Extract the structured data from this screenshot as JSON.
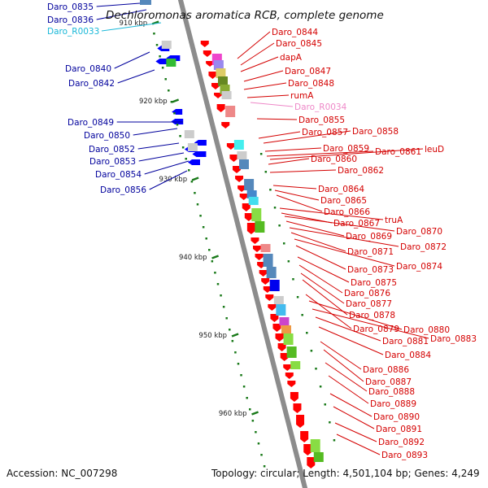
{
  "title": "Dechloromonas aromatica RCB, complete genome",
  "footer": {
    "accession": "Accession: NC_007298",
    "summary": "Topology: circular; Length: 4,501,104 bp; Genes: 4,249"
  },
  "colors": {
    "forward_label": "#d40000",
    "reverse_label": "#00009c",
    "rna_reverse_label": "#19b8d8",
    "rna_forward_label": "#ee88c8",
    "forward_gene": "#ff0000",
    "reverse_gene": "#0000ff",
    "backbone": "#8c8c8c",
    "tick": "#1a7a1a"
  },
  "ticks": [
    {
      "label": "910 kbp"
    },
    {
      "label": "920 kbp"
    },
    {
      "label": "930 kbp"
    },
    {
      "label": "940 kbp"
    },
    {
      "label": "950 kbp"
    },
    {
      "label": "960 kbp"
    }
  ],
  "left_labels": [
    {
      "text": "Daro_0835"
    },
    {
      "text": "Daro_0836"
    },
    {
      "text": "Daro_R0033"
    },
    {
      "text": "Daro_0840"
    },
    {
      "text": "Daro_0842"
    },
    {
      "text": "Daro_0849"
    },
    {
      "text": "Daro_0850"
    },
    {
      "text": "Daro_0852"
    },
    {
      "text": "Daro_0853"
    },
    {
      "text": "Daro_0854"
    },
    {
      "text": "Daro_0856"
    }
  ],
  "right_labels": [
    {
      "text": "Daro_0844"
    },
    {
      "text": "Daro_0845"
    },
    {
      "text": "dapA"
    },
    {
      "text": "Daro_0847"
    },
    {
      "text": "Daro_0848"
    },
    {
      "text": "rumA"
    },
    {
      "text": "Daro_R0034"
    },
    {
      "text": "Daro_0855"
    },
    {
      "text": "Daro_0857"
    },
    {
      "text": "Daro_0858"
    },
    {
      "text": "Daro_0859"
    },
    {
      "text": "Daro_0861"
    },
    {
      "text": "leuD"
    },
    {
      "text": "Daro_0860"
    },
    {
      "text": "Daro_0862"
    },
    {
      "text": "Daro_0864"
    },
    {
      "text": "Daro_0865"
    },
    {
      "text": "Daro_0866"
    },
    {
      "text": "truA"
    },
    {
      "text": "Daro_0867"
    },
    {
      "text": "Daro_0870"
    },
    {
      "text": "Daro_0869"
    },
    {
      "text": "Daro_0872"
    },
    {
      "text": "Daro_0871"
    },
    {
      "text": "Daro_0874"
    },
    {
      "text": "Daro_0873"
    },
    {
      "text": "Daro_0875"
    },
    {
      "text": "Daro_0876"
    },
    {
      "text": "Daro_0877"
    },
    {
      "text": "Daro_0878"
    },
    {
      "text": "Daro_0879"
    },
    {
      "text": "Daro_0880"
    },
    {
      "text": "Daro_0883"
    },
    {
      "text": "Daro_0881"
    },
    {
      "text": "Daro_0884"
    },
    {
      "text": "Daro_0886"
    },
    {
      "text": "Daro_0887"
    },
    {
      "text": "Daro_0888"
    },
    {
      "text": "Daro_0889"
    },
    {
      "text": "Daro_0890"
    },
    {
      "text": "Daro_0891"
    },
    {
      "text": "Daro_0892"
    },
    {
      "text": "Daro_0893"
    }
  ]
}
